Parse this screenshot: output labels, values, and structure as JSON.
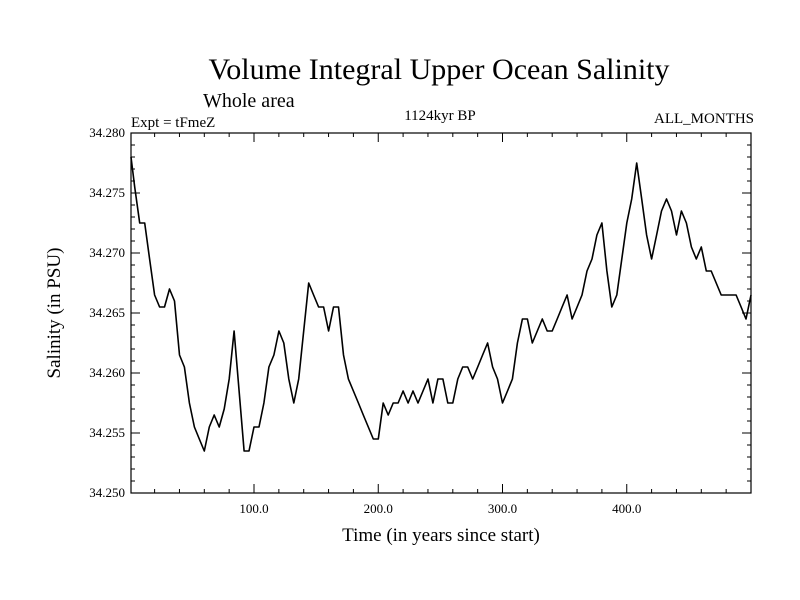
{
  "chart_data": {
    "type": "line",
    "title": "Volume Integral Upper Ocean Salinity",
    "subtitle": "Whole area",
    "expt_label": "Expt = tFmeZ",
    "period_label": "1124kyr BP",
    "months_label": "ALL_MONTHS",
    "xlabel": "Time (in years since start)",
    "ylabel": "Salinity (in PSU)",
    "xlim": [
      1,
      500
    ],
    "ylim": [
      34.25,
      34.28
    ],
    "x_ticks": [
      {
        "value": 100,
        "label": "100.0"
      },
      {
        "value": 200,
        "label": "200.0"
      },
      {
        "value": 300,
        "label": "300.0"
      },
      {
        "value": 400,
        "label": "400.0"
      }
    ],
    "y_ticks": [
      {
        "value": 34.25,
        "label": "34.250"
      },
      {
        "value": 34.255,
        "label": "34.255"
      },
      {
        "value": 34.26,
        "label": "34.260"
      },
      {
        "value": 34.265,
        "label": "34.265"
      },
      {
        "value": 34.27,
        "label": "34.270"
      },
      {
        "value": 34.275,
        "label": "34.275"
      },
      {
        "value": 34.28,
        "label": "34.280"
      }
    ],
    "series": [
      {
        "name": "salinity",
        "color": "#000000",
        "x": [
          1,
          4,
          8,
          12,
          16,
          20,
          24,
          28,
          32,
          36,
          40,
          44,
          48,
          52,
          56,
          60,
          64,
          68,
          72,
          76,
          80,
          84,
          88,
          92,
          96,
          100,
          104,
          108,
          112,
          116,
          120,
          124,
          128,
          132,
          136,
          140,
          144,
          148,
          152,
          156,
          160,
          164,
          168,
          172,
          176,
          180,
          184,
          188,
          192,
          196,
          200,
          204,
          208,
          212,
          216,
          220,
          224,
          228,
          232,
          236,
          240,
          244,
          248,
          252,
          256,
          260,
          264,
          268,
          272,
          276,
          280,
          284,
          288,
          292,
          296,
          300,
          304,
          308,
          312,
          316,
          320,
          324,
          328,
          332,
          336,
          340,
          344,
          348,
          352,
          356,
          360,
          364,
          368,
          372,
          376,
          380,
          384,
          388,
          392,
          396,
          400,
          404,
          408,
          412,
          416,
          420,
          424,
          428,
          432,
          436,
          440,
          444,
          448,
          452,
          456,
          460,
          464,
          468,
          472,
          476,
          480,
          484,
          488,
          492,
          496,
          500
        ],
        "values": [
          34.278,
          34.2755,
          34.2725,
          34.2725,
          34.2695,
          34.2665,
          34.2655,
          34.2655,
          34.267,
          34.266,
          34.2615,
          34.2605,
          34.2575,
          34.2555,
          34.2545,
          34.2535,
          34.2555,
          34.2565,
          34.2555,
          34.257,
          34.2595,
          34.2635,
          34.2585,
          34.2535,
          34.2535,
          34.2555,
          34.2555,
          34.2575,
          34.2605,
          34.2615,
          34.2635,
          34.2625,
          34.2595,
          34.2575,
          34.2595,
          34.2635,
          34.2675,
          34.2665,
          34.2655,
          34.2655,
          34.2635,
          34.2655,
          34.2655,
          34.2615,
          34.2595,
          34.2585,
          34.2575,
          34.2565,
          34.2555,
          34.2545,
          34.2545,
          34.2575,
          34.2565,
          34.2575,
          34.2575,
          34.2585,
          34.2575,
          34.2585,
          34.2575,
          34.2585,
          34.2595,
          34.2575,
          34.2595,
          34.2595,
          34.2575,
          34.2575,
          34.2595,
          34.2605,
          34.2605,
          34.2595,
          34.2605,
          34.2615,
          34.2625,
          34.2605,
          34.2595,
          34.2575,
          34.2585,
          34.2595,
          34.2625,
          34.2645,
          34.2645,
          34.2625,
          34.2635,
          34.2645,
          34.2635,
          34.2635,
          34.2645,
          34.2655,
          34.2665,
          34.2645,
          34.2655,
          34.2665,
          34.2685,
          34.2695,
          34.2715,
          34.2725,
          34.2685,
          34.2655,
          34.2665,
          34.2695,
          34.2725,
          34.2745,
          34.2775,
          34.2745,
          34.2715,
          34.2695,
          34.2715,
          34.2735,
          34.2745,
          34.2735,
          34.2715,
          34.2735,
          34.2725,
          34.2705,
          34.2695,
          34.2705,
          34.2685,
          34.2685,
          34.2675,
          34.2665,
          34.2665,
          34.2665,
          34.2665,
          34.2655,
          34.2645,
          34.2665
        ]
      }
    ]
  }
}
